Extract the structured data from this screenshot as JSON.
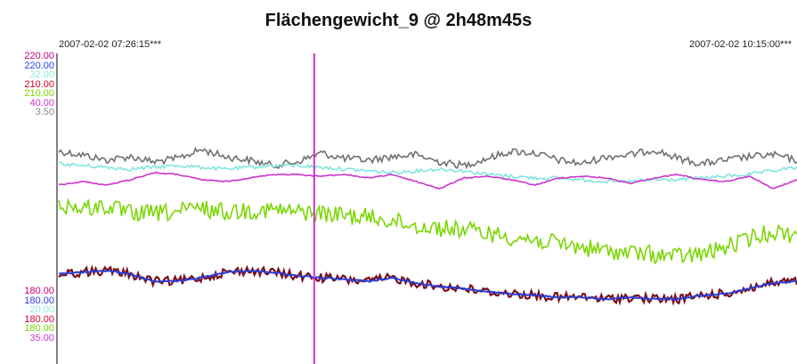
{
  "chart_data": {
    "type": "line",
    "title": "Flächengewicht_9  @ 2h48m45s",
    "time_start": "2007-02-02  07:26:15***",
    "time_end": "2007-02-02  10:15:00***",
    "axis_top_labels": [
      {
        "text": "220.00",
        "color": "#c8007a"
      },
      {
        "text": "220.00",
        "color": "#2a3fd8"
      },
      {
        "text": "32.00",
        "color": "#8fe8e0"
      },
      {
        "text": "210.00",
        "color": "#d4002a"
      },
      {
        "text": "210.00",
        "color": "#7ad600"
      },
      {
        "text": "40.00",
        "color": "#cc33cc"
      },
      {
        "text": "3.50",
        "color": "#888888"
      }
    ],
    "axis_bottom_labels": [
      {
        "text": "180.00",
        "color": "#c8007a"
      },
      {
        "text": "180.00",
        "color": "#2a3fd8"
      },
      {
        "text": "20.00",
        "color": "#8fe8e0"
      },
      {
        "text": "180.00",
        "color": "#d4002a"
      },
      {
        "text": "180.00",
        "color": "#7ad600"
      },
      {
        "text": "35.00",
        "color": "#cc33cc"
      }
    ],
    "cursor_color": "#cc33cc",
    "series": [
      {
        "color": "#707070",
        "noise": 4,
        "values": [
          0.79,
          0.77,
          0.74,
          0.76,
          0.73,
          0.75,
          0.8,
          0.76,
          0.74,
          0.71,
          0.73,
          0.78,
          0.75,
          0.74,
          0.76,
          0.77,
          0.73,
          0.71,
          0.75,
          0.79,
          0.78,
          0.74,
          0.72,
          0.76,
          0.77,
          0.8,
          0.75,
          0.72,
          0.74,
          0.76,
          0.77,
          0.74
        ]
      },
      {
        "color": "#7fe6de",
        "noise": 2,
        "values": [
          0.72,
          0.71,
          0.7,
          0.69,
          0.7,
          0.71,
          0.7,
          0.69,
          0.7,
          0.71,
          0.71,
          0.7,
          0.69,
          0.68,
          0.67,
          0.68,
          0.69,
          0.68,
          0.66,
          0.65,
          0.64,
          0.64,
          0.63,
          0.62,
          0.62,
          0.63,
          0.63,
          0.64,
          0.65,
          0.66,
          0.68,
          0.7
        ]
      },
      {
        "color": "#cc33cc",
        "noise": 0.6,
        "values": [
          0.6,
          0.62,
          0.6,
          0.63,
          0.67,
          0.66,
          0.63,
          0.62,
          0.64,
          0.66,
          0.66,
          0.65,
          0.66,
          0.64,
          0.66,
          0.62,
          0.58,
          0.64,
          0.65,
          0.63,
          0.6,
          0.64,
          0.65,
          0.64,
          0.61,
          0.64,
          0.66,
          0.63,
          0.62,
          0.65,
          0.58,
          0.63
        ]
      },
      {
        "color": "#7ad600",
        "noise": 10,
        "values": [
          0.49,
          0.47,
          0.48,
          0.44,
          0.44,
          0.45,
          0.47,
          0.45,
          0.46,
          0.46,
          0.45,
          0.44,
          0.43,
          0.42,
          0.4,
          0.37,
          0.36,
          0.35,
          0.33,
          0.31,
          0.29,
          0.27,
          0.25,
          0.23,
          0.22,
          0.21,
          0.2,
          0.21,
          0.25,
          0.3,
          0.34,
          0.32
        ]
      },
      {
        "color": "#7a0e1a",
        "noise": 5,
        "values": [
          0.1,
          0.11,
          0.12,
          0.1,
          0.06,
          0.06,
          0.08,
          0.11,
          0.12,
          0.11,
          0.09,
          0.08,
          0.07,
          0.06,
          0.08,
          0.05,
          0.03,
          0.02,
          0.0,
          -0.01,
          -0.02,
          -0.03,
          -0.03,
          -0.04,
          -0.03,
          -0.04,
          -0.04,
          -0.02,
          -0.01,
          0.02,
          0.05,
          0.06
        ]
      },
      {
        "color": "#2a3fd8",
        "noise": 0.8,
        "values": [
          0.1,
          0.11,
          0.12,
          0.1,
          0.06,
          0.06,
          0.08,
          0.11,
          0.12,
          0.11,
          0.09,
          0.08,
          0.07,
          0.06,
          0.08,
          0.05,
          0.03,
          0.02,
          0.0,
          -0.01,
          -0.02,
          -0.03,
          -0.03,
          -0.04,
          -0.03,
          -0.04,
          -0.04,
          -0.02,
          -0.01,
          0.02,
          0.05,
          0.06
        ]
      }
    ],
    "cursor_fraction": 0.346
  }
}
